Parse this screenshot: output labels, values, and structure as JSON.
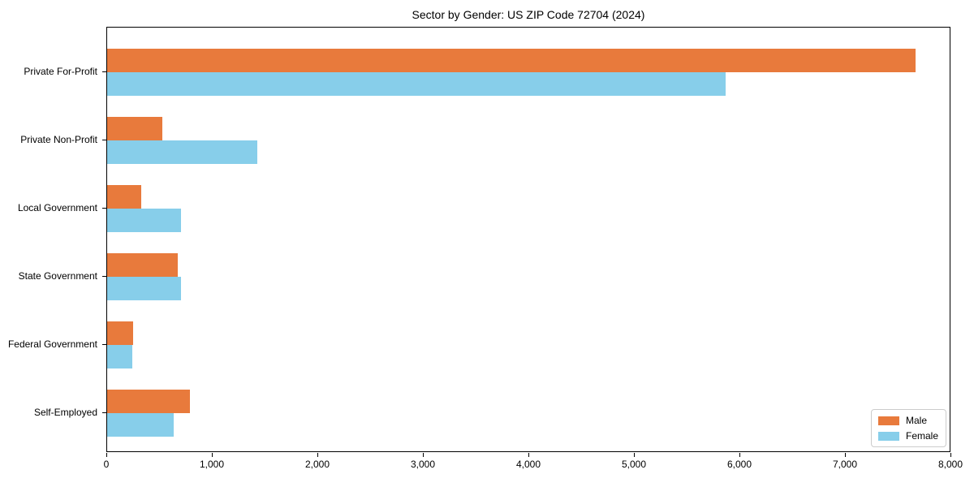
{
  "chart_data": {
    "type": "bar",
    "orientation": "horizontal",
    "title": "Sector by Gender: US ZIP Code 72704 (2024)",
    "categories": [
      "Private For-Profit",
      "Private Non-Profit",
      "Local Government",
      "State Government",
      "Federal Government",
      "Self-Employed"
    ],
    "series": [
      {
        "name": "Male",
        "color": "#e87a3c",
        "values": [
          7680,
          525,
          325,
          670,
          245,
          785
        ]
      },
      {
        "name": "Female",
        "color": "#87ceea",
        "values": [
          5870,
          1425,
          705,
          700,
          240,
          630
        ]
      }
    ],
    "xlabel": "",
    "ylabel": "",
    "xlim": [
      0,
      8000
    ],
    "xticks": [
      0,
      1000,
      2000,
      3000,
      4000,
      5000,
      6000,
      7000,
      8000
    ],
    "xtick_labels": [
      "0",
      "1,000",
      "2,000",
      "3,000",
      "4,000",
      "5,000",
      "6,000",
      "7,000",
      "8,000"
    ],
    "grid": false,
    "legend_position": "lower right"
  }
}
